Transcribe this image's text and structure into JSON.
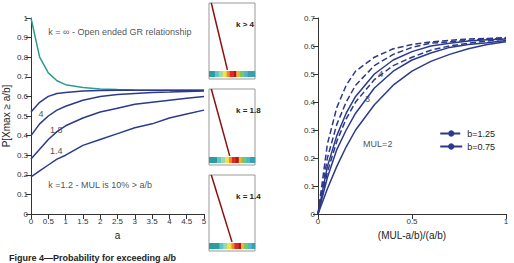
{
  "chart_data": [
    {
      "type": "line",
      "xlabel": "a",
      "ylabel": "P[Xmax ≥ a/b]",
      "xlim": [
        0,
        5
      ],
      "xticks": [
        0,
        0.5,
        1,
        1.5,
        2,
        2.5,
        3,
        3.5,
        4,
        4.5,
        5
      ],
      "ylim": [
        0,
        1
      ],
      "yticks": [
        0,
        0.1,
        0.2,
        0.3,
        0.4,
        0.5,
        0.6,
        0.7,
        0.8,
        0.9,
        1
      ],
      "grid": false,
      "x": [
        0,
        0.25,
        0.5,
        0.75,
        1,
        1.5,
        2,
        2.5,
        3,
        3.5,
        4,
        4.5,
        5
      ],
      "series": [
        {
          "color": "#2a9d8f",
          "values": [
            1,
            0.8,
            0.72,
            0.68,
            0.66,
            0.645,
            0.638,
            0.635,
            0.633,
            0.632,
            0.632,
            0.632,
            0.632
          ]
        },
        {
          "color": "#2b3a8c",
          "values": [
            0.52,
            0.57,
            0.6,
            0.615,
            0.62,
            0.627,
            0.63,
            0.631,
            0.632,
            0.632,
            0.632,
            0.632,
            0.632
          ]
        },
        {
          "color": "#2b3a8c",
          "values": [
            0.4,
            0.46,
            0.5,
            0.53,
            0.55,
            0.58,
            0.6,
            0.61,
            0.615,
            0.62,
            0.622,
            0.625,
            0.627
          ]
        },
        {
          "color": "#2b3a8c",
          "values": [
            0.28,
            0.33,
            0.38,
            0.42,
            0.45,
            0.49,
            0.52,
            0.54,
            0.56,
            0.57,
            0.58,
            0.59,
            0.6
          ]
        },
        {
          "color": "#2b3a8c",
          "values": [
            0.19,
            0.22,
            0.25,
            0.28,
            0.3,
            0.35,
            0.38,
            0.41,
            0.44,
            0.46,
            0.49,
            0.51,
            0.53
          ]
        }
      ],
      "annotations": [
        {
          "text": "k = ∞ - Open ended GR relationship",
          "x": 0.5,
          "y": 0.93
        },
        {
          "text": "4",
          "x": 0.22,
          "y": 0.51
        },
        {
          "text": "1.8",
          "x": 0.55,
          "y": 0.43
        },
        {
          "text": "1.4",
          "x": 0.55,
          "y": 0.32
        },
        {
          "text": "k =1.2 - MUL is 10% > a/b",
          "x": 0.5,
          "y": 0.15
        }
      ]
    },
    {
      "type": "line",
      "title": "k > 4",
      "tick_labels": false,
      "xlim": [
        0,
        1
      ],
      "ylim": [
        0,
        1
      ],
      "x": [
        0.05,
        0.4
      ],
      "values": [
        1,
        0.12
      ],
      "color": "#8b1010"
    },
    {
      "type": "line",
      "title": "k = 1.8",
      "tick_labels": false,
      "xlim": [
        0,
        1
      ],
      "ylim": [
        0,
        1
      ],
      "x": [
        0.05,
        0.45
      ],
      "values": [
        1,
        0.12
      ],
      "color": "#8b1010"
    },
    {
      "type": "line",
      "title": "k = 1.4",
      "tick_labels": false,
      "xlim": [
        0,
        1
      ],
      "ylim": [
        0,
        1
      ],
      "x": [
        0.05,
        0.5
      ],
      "values": [
        1,
        0.12
      ],
      "color": "#8b1010"
    },
    {
      "type": "line",
      "xlabel": "(MUL-a/b)/(a/b)",
      "xlim": [
        0,
        1
      ],
      "xticks": [
        0,
        0.5,
        1
      ],
      "ylim": [
        0,
        0.7
      ],
      "yticks": [
        0,
        0.1,
        0.2,
        0.3,
        0.4,
        0.5,
        0.6,
        0.7
      ],
      "grid": false,
      "legend": "lower right",
      "x": [
        0,
        0.05,
        0.1,
        0.15,
        0.2,
        0.3,
        0.4,
        0.5,
        0.6,
        0.7,
        0.8,
        0.9,
        1
      ],
      "series": [
        {
          "name": "b=1.25",
          "color": "#2b3a8c",
          "line_style": "dashed",
          "values": [
            0,
            0.25,
            0.38,
            0.46,
            0.51,
            0.56,
            0.59,
            0.605,
            0.615,
            0.62,
            0.625,
            0.627,
            0.63
          ]
        },
        {
          "name": "b=1.25",
          "color": "#2b3a8c",
          "line_style": "dashed",
          "values": [
            0,
            0.2,
            0.32,
            0.4,
            0.46,
            0.53,
            0.57,
            0.595,
            0.61,
            0.615,
            0.62,
            0.625,
            0.628
          ]
        },
        {
          "name": "b=1.25",
          "color": "#2b3a8c",
          "line_style": "dashed",
          "values": [
            0,
            0.15,
            0.26,
            0.34,
            0.4,
            0.48,
            0.53,
            0.56,
            0.585,
            0.6,
            0.61,
            0.618,
            0.625
          ]
        },
        {
          "name": "b=0.75",
          "color": "#2b3a8c",
          "line_style": "solid",
          "values": [
            0,
            0.17,
            0.28,
            0.36,
            0.42,
            0.5,
            0.55,
            0.58,
            0.6,
            0.61,
            0.618,
            0.622,
            0.625
          ]
        },
        {
          "name": "b=0.75",
          "color": "#2b3a8c",
          "line_style": "solid",
          "values": [
            0,
            0.13,
            0.23,
            0.3,
            0.36,
            0.45,
            0.51,
            0.55,
            0.575,
            0.595,
            0.605,
            0.612,
            0.62
          ]
        },
        {
          "name": "b=0.75",
          "color": "#2b3a8c",
          "line_style": "solid",
          "values": [
            0,
            0.09,
            0.17,
            0.24,
            0.3,
            0.39,
            0.46,
            0.51,
            0.545,
            0.57,
            0.59,
            0.605,
            0.615
          ]
        }
      ],
      "annotations": [
        {
          "text": "4",
          "x": 0.32,
          "y": 0.5
        },
        {
          "text": "3",
          "x": 0.25,
          "y": 0.41
        },
        {
          "text": "MUL=2",
          "x": 0.24,
          "y": 0.25
        }
      ]
    }
  ],
  "caption": "Figure 4—Probability for exceeding a/b"
}
